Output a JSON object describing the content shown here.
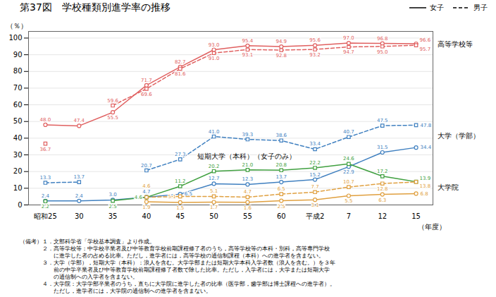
{
  "chart_data": {
    "type": "line",
    "title": "第37図　学校種類別進学率の推移",
    "x_label": "（年度）",
    "y_label": "（％）",
    "categories": [
      "昭和25",
      "30",
      "35",
      "40",
      "45",
      "50",
      "55",
      "60",
      "平成2",
      "7",
      "12",
      "15"
    ],
    "ylim": [
      0,
      104
    ],
    "yticks": [
      0,
      10,
      20,
      30,
      40,
      50,
      60,
      70,
      80,
      90,
      100
    ],
    "grid": true,
    "data_labels": true,
    "legend": "top",
    "legend_entries": [
      {
        "label": "女子",
        "line_style": "solid"
      },
      {
        "label": "男子",
        "line_style": "dashed"
      }
    ],
    "series": [
      {
        "name": "高等学校等",
        "color": "#e06060",
        "line_style": "solid",
        "marker": "circle",
        "values": [
          48.0,
          47.4,
          55.5,
          71.7,
          82.7,
          93.0,
          95.4,
          94.9,
          95.6,
          97.0,
          96.8,
          96.6
        ],
        "value_labels": [
          "48.0",
          "47.4",
          "55.5",
          "71.7",
          "82.7",
          "93.0",
          "95.4",
          "94.9",
          "95.6",
          "97.0",
          "96.8",
          "96.6"
        ]
      },
      {
        "name": "高等学校等",
        "color": "#e06060",
        "line_style": "dashed",
        "marker": "square",
        "values": [
          36.7,
          null,
          59.6,
          69.6,
          81.6,
          91.0,
          93.1,
          92.8,
          93.2,
          94.7,
          95.0,
          95.7
        ],
        "value_labels": [
          "36.7",
          null,
          "59.6",
          "69.6",
          "81.6",
          "91.0",
          "93.1",
          "92.8",
          "93.2",
          "94.7",
          "95.0",
          "95.7"
        ]
      },
      {
        "name": "大学（学部）",
        "color": "#4080c0",
        "line_style": "solid",
        "marker": "circle",
        "values": [
          2.4,
          2.4,
          3.0,
          4.7,
          6.5,
          12.7,
          12.3,
          13.7,
          15.2,
          22.9,
          31.5,
          34.4
        ],
        "value_labels": [
          "2.4",
          "2.4",
          "3.0",
          "4.7",
          "6.5",
          "12.7",
          "12.3",
          "13.7",
          "15.2",
          "22.9",
          "31.5",
          "34.4"
        ]
      },
      {
        "name": "大学（学部）",
        "color": "#4080c0",
        "line_style": "dashed",
        "marker": "square",
        "values": [
          13.3,
          13.7,
          null,
          20.7,
          27.3,
          41.0,
          39.3,
          38.6,
          33.4,
          40.7,
          47.5,
          47.8
        ],
        "value_labels": [
          "13.3",
          "13.7",
          null,
          "20.7",
          "27.3",
          "41.0",
          "39.3",
          "38.6",
          "33.4",
          "40.7",
          "47.5",
          "47.8"
        ]
      },
      {
        "name": "短期大学（本科）（女子のみ）",
        "color": "#40a040",
        "line_style": "solid",
        "marker": "square",
        "values": [
          2.2,
          null,
          2.5,
          4.6,
          11.2,
          20.2,
          21.0,
          20.8,
          22.2,
          24.6,
          17.2,
          13.9
        ],
        "value_labels": [
          "2.2",
          null,
          "2.5",
          "4.6",
          "11.2",
          "20.2",
          "21.0",
          "20.8",
          "22.2",
          "24.6",
          "17.2",
          "13.9"
        ]
      },
      {
        "name": "大学院",
        "color": "#e0a040",
        "line_style": "solid",
        "marker": "circle",
        "values": [
          null,
          null,
          null,
          1.9,
          1.5,
          1.7,
          1.6,
          2.5,
          3.1,
          5.5,
          6.3,
          6.8
        ],
        "value_labels": [
          null,
          null,
          null,
          "1.9",
          "1.5",
          "1.7",
          "1.6",
          "2.5",
          "3.1",
          "5.5",
          "6.3",
          "6.8"
        ]
      },
      {
        "name": "大学院",
        "color": "#e0a040",
        "line_style": "dashed",
        "marker": "square",
        "values": [
          null,
          null,
          null,
          4.6,
          5.1,
          5.1,
          4.7,
          6.5,
          7.7,
          10.7,
          12.8,
          13.8
        ],
        "value_labels": [
          null,
          null,
          null,
          "4.6",
          "5.1",
          "5.1",
          "4.7",
          "6.5",
          "7.7",
          "10.7",
          "12.8",
          "13.8"
        ]
      }
    ],
    "caption": "（備考）１．文部科学省「学校基本調査」より作成。\n　　　　２．高等学校等：中学校卒業者及び中等教育学校前期課程修了者のうち，高等学校等の本科・別科，高等専門学校\n　　　　　　に進学した者の占める比率。ただし，進学者には，高等学校の通信制課程（本科）への進学者を含まない。\n　　　　３．大学（学部），短期大学（本科）：浪人を含む。大学学部または短期大学本科入学者数（浪人を含む。）を３年\n　　　　　　前の中学卒業者及び中等教育学校前期課程修了者数で除した比率。ただし，入学者には，大学または短期大学\n　　　　　　の通信制への入学者を含まない。\n　　　　４．大学院：大学学部卒業者のうち，直ちに大学院に進学した者の比率（医学部，歯学部は博士課程への進学者）。\n　　　　　　ただし，進学者には，大学院の通信制への進学者を含まない。"
  }
}
